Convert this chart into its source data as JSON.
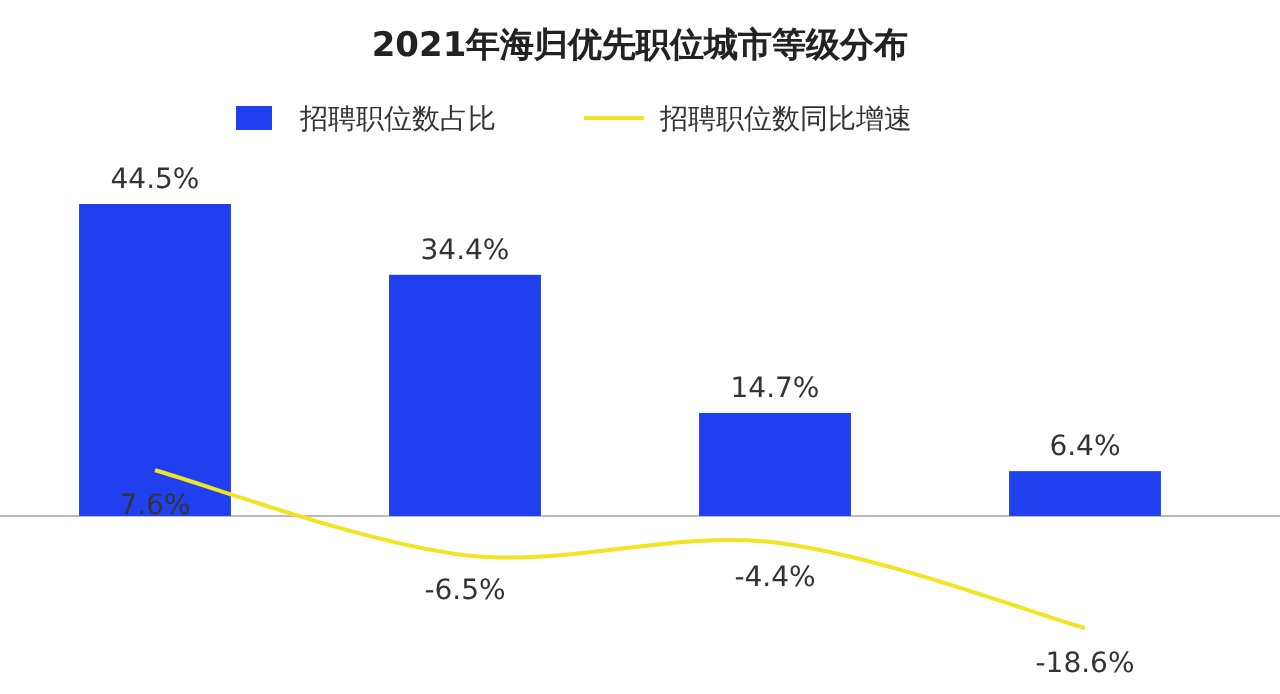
{
  "chart_data": [
    {
      "type": "bar",
      "title": "2021年海归优先职位城市等级分布",
      "categories": [
        null,
        null,
        null,
        null
      ],
      "legend": "top",
      "series": [
        {
          "name": "招聘职位数占比",
          "color": "#2040f0",
          "values": [
            44.5,
            34.4,
            14.7,
            6.4
          ],
          "value_labels": [
            "44.5%",
            "34.4%",
            "14.7%",
            "6.4%"
          ]
        }
      ]
    },
    {
      "type": "line",
      "categories": [
        null,
        null,
        null,
        null
      ],
      "legend": "top",
      "series": [
        {
          "name": "招聘职位数同比增速",
          "color": "#f2e422",
          "values": [
            7.6,
            -6.5,
            -4.4,
            -18.6
          ],
          "value_labels": [
            "7.6%",
            "-6.5%",
            "-4.4%",
            "-18.6%"
          ]
        }
      ]
    }
  ]
}
